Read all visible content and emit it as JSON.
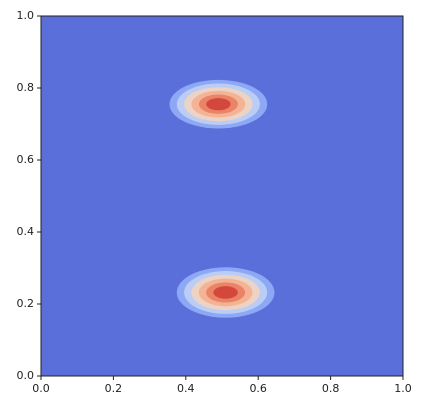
{
  "chart_data": {
    "type": "contour",
    "background_color": "#5a6fd9",
    "level_colors": [
      "#8da8f4",
      "#bccdf5",
      "#ecd3c4",
      "#f5b396",
      "#ea8467",
      "#d4473d"
    ],
    "peaks": [
      {
        "x": 0.49,
        "y": 0.755,
        "width": 0.27,
        "height": 0.135
      },
      {
        "x": 0.51,
        "y": 0.232,
        "width": 0.27,
        "height": 0.14
      }
    ],
    "xlim": [
      0,
      1
    ],
    "ylim": [
      0,
      1
    ],
    "xticks": [
      {
        "value": 0,
        "label": "0.0"
      },
      {
        "value": 0.2,
        "label": "0.2"
      },
      {
        "value": 0.4,
        "label": "0.4"
      },
      {
        "value": 0.6,
        "label": "0.6"
      },
      {
        "value": 0.8,
        "label": "0.8"
      },
      {
        "value": 1,
        "label": "1.0"
      }
    ],
    "yticks": [
      {
        "value": 0,
        "label": "0.0"
      },
      {
        "value": 0.2,
        "label": "0.2"
      },
      {
        "value": 0.4,
        "label": "0.4"
      },
      {
        "value": 0.6,
        "label": "0.6"
      },
      {
        "value": 0.8,
        "label": "0.8"
      },
      {
        "value": 1,
        "label": "1.0"
      }
    ]
  }
}
